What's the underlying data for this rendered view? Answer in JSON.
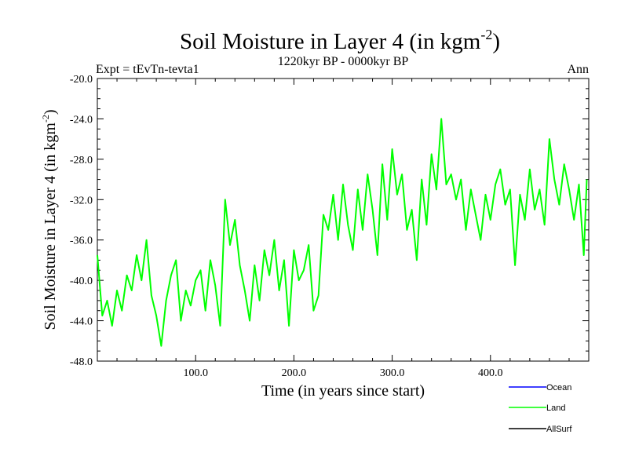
{
  "chart_data": {
    "type": "line",
    "title": "Soil Moisture in Layer 4 (in kgm",
    "title_superscript": "-2",
    "title_close": ")",
    "subtitle": "1220kyr BP - 0000kyr BP",
    "experiment_label": "Expt = tEvTn-tevta1",
    "period_label": "Ann",
    "xlabel": "Time (in years since start)",
    "ylabel": "Soil Moisture in Layer 4 (in kgm",
    "ylabel_superscript": "-2",
    "ylabel_close": ")",
    "xlim": [
      0,
      500
    ],
    "ylim": [
      -48,
      -20
    ],
    "x_ticks": [
      100,
      200,
      300,
      400
    ],
    "x_tick_labels": [
      "100.0",
      "200.0",
      "300.0",
      "400.0"
    ],
    "y_ticks": [
      -48,
      -44,
      -40,
      -36,
      -32,
      -28,
      -24,
      -20
    ],
    "y_tick_labels": [
      "-48.0",
      "-44.0",
      "-40.0",
      "-36.0",
      "-32.0",
      "-28.0",
      "-24.0",
      "-20.0"
    ],
    "legend": [
      {
        "name": "Ocean",
        "color": "#0000ff"
      },
      {
        "name": "Land",
        "color": "#00ff00"
      },
      {
        "name": "AllSurf",
        "color": "#000000"
      }
    ],
    "series": [
      {
        "name": "Land",
        "color": "#00ff00",
        "x": [
          0,
          5,
          10,
          15,
          20,
          25,
          30,
          35,
          40,
          45,
          50,
          55,
          60,
          65,
          70,
          75,
          80,
          85,
          90,
          95,
          100,
          105,
          110,
          115,
          120,
          125,
          130,
          135,
          140,
          145,
          150,
          155,
          160,
          165,
          170,
          175,
          180,
          185,
          190,
          195,
          200,
          205,
          210,
          215,
          220,
          225,
          230,
          235,
          240,
          245,
          250,
          255,
          260,
          265,
          270,
          275,
          280,
          285,
          290,
          295,
          300,
          305,
          310,
          315,
          320,
          325,
          330,
          335,
          340,
          345,
          350,
          355,
          360,
          365,
          370,
          375,
          380,
          385,
          390,
          395,
          400,
          405,
          410,
          415,
          420,
          425,
          430,
          435,
          440,
          445,
          450,
          455,
          460,
          465,
          470,
          475,
          480,
          485,
          490,
          495,
          498
        ],
        "values": [
          -37.5,
          -43.5,
          -42.0,
          -44.5,
          -41.0,
          -43.0,
          -39.5,
          -41.0,
          -37.5,
          -40.0,
          -36.0,
          -41.5,
          -43.5,
          -46.5,
          -42.0,
          -39.5,
          -38.0,
          -44.0,
          -41.0,
          -42.5,
          -40.0,
          -39.0,
          -43.0,
          -38.0,
          -40.5,
          -44.5,
          -32.0,
          -36.5,
          -34.0,
          -38.5,
          -41.0,
          -44.0,
          -38.5,
          -42.0,
          -37.0,
          -39.5,
          -36.0,
          -41.0,
          -38.0,
          -44.5,
          -37.0,
          -40.0,
          -39.0,
          -36.5,
          -43.0,
          -41.5,
          -33.5,
          -35.0,
          -31.5,
          -36.0,
          -30.5,
          -34.5,
          -37.0,
          -31.0,
          -35.0,
          -29.5,
          -33.0,
          -37.5,
          -28.5,
          -34.0,
          -27.0,
          -31.5,
          -29.5,
          -35.0,
          -33.0,
          -38.0,
          -30.0,
          -34.5,
          -27.5,
          -31.0,
          -24.0,
          -30.5,
          -29.5,
          -32.0,
          -30.0,
          -35.0,
          -31.0,
          -33.5,
          -36.0,
          -31.5,
          -34.0,
          -30.5,
          -29.0,
          -32.5,
          -31.0,
          -38.5,
          -31.5,
          -34.0,
          -29.0,
          -33.0,
          -31.0,
          -34.5,
          -26.0,
          -30.0,
          -32.5,
          -28.5,
          -31.0,
          -34.0,
          -30.5,
          -37.5,
          -30.0
        ]
      }
    ]
  }
}
